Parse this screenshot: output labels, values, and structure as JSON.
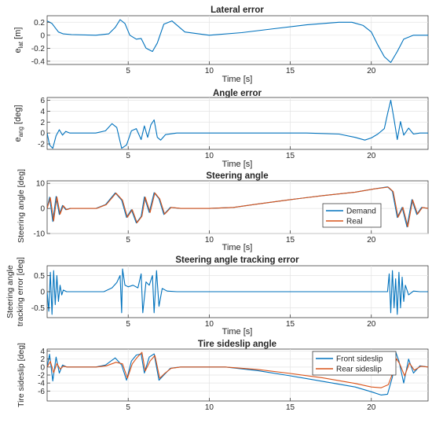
{
  "chart_data": [
    {
      "type": "line",
      "title": "Lateral error",
      "ylabel_main": "e",
      "ylabel_sub": "lat",
      "ylabel_unit": " [m]",
      "xlabel": "Time [s]",
      "xlim": [
        0,
        23.5
      ],
      "ylim": [
        -0.45,
        0.3
      ],
      "xticks": [
        5,
        10,
        15,
        20
      ],
      "yticks": [
        -0.4,
        -0.2,
        0,
        0.2
      ],
      "ytick_labels": [
        "-0.4",
        "-0.2",
        "0",
        "0.2"
      ],
      "grid": true,
      "series": [
        {
          "color": "#0072bd",
          "x": [
            0,
            0.3,
            0.7,
            1.0,
            1.5,
            3.0,
            3.8,
            4.2,
            4.5,
            4.8,
            5.1,
            5.5,
            5.8,
            6.1,
            6.5,
            6.8,
            7.2,
            7.7,
            8.5,
            10,
            12,
            14,
            16,
            18,
            18.8,
            19.5,
            20,
            20.4,
            20.8,
            21.2,
            21.6,
            22,
            22.6,
            23.5
          ],
          "values": [
            0.22,
            0.18,
            0.05,
            0.02,
            0.01,
            0,
            0.02,
            0.12,
            0.24,
            0.18,
            0.0,
            -0.06,
            -0.05,
            -0.2,
            -0.25,
            -0.12,
            0.17,
            0.22,
            0.05,
            0,
            0.04,
            0.1,
            0.16,
            0.2,
            0.2,
            0.15,
            0.05,
            -0.15,
            -0.33,
            -0.42,
            -0.25,
            -0.06,
            0,
            0
          ]
        }
      ]
    },
    {
      "type": "line",
      "title": "Angle error",
      "ylabel_main": "e",
      "ylabel_sub": "ang",
      "ylabel_unit": " [deg]",
      "xlabel": "Time [s]",
      "xlim": [
        0,
        23.5
      ],
      "ylim": [
        -3,
        6.5
      ],
      "xticks": [
        5,
        10,
        15,
        20
      ],
      "yticks": [
        -2,
        0,
        2,
        4,
        6
      ],
      "ytick_labels": [
        "-2",
        "0",
        "2",
        "4",
        "6"
      ],
      "grid": true,
      "series": [
        {
          "color": "#0072bd",
          "x": [
            0,
            0.15,
            0.35,
            0.55,
            0.75,
            0.95,
            1.15,
            1.4,
            1.8,
            3.0,
            3.6,
            4.0,
            4.3,
            4.6,
            4.9,
            5.2,
            5.5,
            5.8,
            6.0,
            6.2,
            6.4,
            6.6,
            6.8,
            7.0,
            7.3,
            8,
            10,
            12,
            14,
            16,
            18,
            19,
            19.6,
            20,
            20.4,
            20.8,
            21.0,
            21.2,
            21.4,
            21.6,
            21.8,
            22.0,
            22.3,
            22.6,
            23.0,
            23.5
          ],
          "values": [
            0,
            -2.2,
            -2.8,
            -0.5,
            0.6,
            -0.4,
            0.3,
            0,
            0,
            0,
            0.4,
            1.7,
            1.0,
            -2.8,
            -2.2,
            0.4,
            0.8,
            -1.2,
            1.3,
            -0.8,
            1.5,
            2.4,
            -0.8,
            -1.3,
            -0.3,
            0,
            0,
            0,
            0,
            0,
            -0.2,
            -0.8,
            -1.3,
            -0.9,
            -0.2,
            0.8,
            3.5,
            6.0,
            2.5,
            -1.2,
            2.1,
            -0.4,
            0.9,
            -0.2,
            0,
            0
          ]
        }
      ]
    },
    {
      "type": "line",
      "title": "Steering angle",
      "ylabel": "Steering angle [deg]",
      "xlabel": "Time [s]",
      "xlim": [
        0,
        23.5
      ],
      "ylim": [
        -10,
        11
      ],
      "xticks": [
        5,
        10,
        15,
        20
      ],
      "yticks": [
        -10,
        0,
        10
      ],
      "ytick_labels": [
        "-10",
        "0",
        "10"
      ],
      "grid": true,
      "legend": "lower-right",
      "series": [
        {
          "name": "Demand",
          "color": "#0072bd",
          "x": [
            0,
            0.15,
            0.35,
            0.55,
            0.75,
            0.95,
            1.15,
            1.4,
            1.8,
            3.0,
            3.6,
            4.2,
            4.6,
            4.9,
            5.2,
            5.5,
            5.8,
            6.0,
            6.3,
            6.6,
            6.9,
            7.2,
            7.6,
            8.2,
            10,
            11.5,
            13,
            15,
            17,
            19,
            20.2,
            21.0,
            21.3,
            21.6,
            21.9,
            22.2,
            22.5,
            22.8,
            23.1,
            23.5
          ],
          "values": [
            0,
            4.5,
            -5.2,
            4.8,
            -2.4,
            1.2,
            -0.5,
            0,
            0,
            0,
            1.5,
            6.2,
            3.3,
            -3.6,
            -0.5,
            -5.8,
            -3.2,
            4.6,
            -1.6,
            6.3,
            3.9,
            -2.4,
            0.4,
            0,
            0,
            0.4,
            1.8,
            3.5,
            5.1,
            6.5,
            7.8,
            8.6,
            6.8,
            -3.6,
            0.4,
            -7.4,
            3.5,
            -2.4,
            0.4,
            0
          ]
        },
        {
          "name": "Real",
          "color": "#d95319",
          "x": [
            0,
            0.2,
            0.4,
            0.6,
            0.8,
            1.0,
            1.2,
            1.45,
            1.85,
            3.05,
            3.65,
            4.25,
            4.65,
            4.95,
            5.25,
            5.55,
            5.85,
            6.05,
            6.35,
            6.65,
            6.95,
            7.25,
            7.65,
            8.25,
            10,
            11.5,
            13,
            15,
            17,
            19,
            20.2,
            21.05,
            21.35,
            21.65,
            21.95,
            22.25,
            22.55,
            22.85,
            23.15,
            23.5
          ],
          "values": [
            0,
            4.3,
            -5.0,
            4.6,
            -2.3,
            1.1,
            -0.5,
            0,
            0,
            0,
            1.5,
            6.1,
            3.3,
            -3.5,
            -0.5,
            -5.7,
            -3.1,
            4.5,
            -1.6,
            6.2,
            3.8,
            -2.3,
            0.4,
            0,
            0,
            0.4,
            1.8,
            3.5,
            5.1,
            6.5,
            7.8,
            8.5,
            6.7,
            -3.5,
            0.4,
            -7.3,
            3.4,
            -2.3,
            0.4,
            0
          ]
        }
      ]
    },
    {
      "type": "line",
      "title": "Steering angle tracking error",
      "ylabel": "Steering angle tracking error [deg]",
      "ylabel_line1": "Steering angle",
      "ylabel_line2": "tracking error [deg]",
      "xlabel": "Time [s]",
      "xlim": [
        0,
        23.5
      ],
      "ylim": [
        -0.8,
        0.8
      ],
      "xticks": [
        5,
        10,
        15,
        20
      ],
      "yticks": [
        -0.5,
        0,
        0.5
      ],
      "ytick_labels": [
        "-0.5",
        "0",
        "0.5"
      ],
      "grid": true,
      "series": [
        {
          "color": "#0072bd",
          "x": [
            0,
            0.1,
            0.2,
            0.3,
            0.4,
            0.5,
            0.6,
            0.7,
            0.8,
            0.9,
            1.0,
            1.2,
            1.5,
            3.5,
            4.0,
            4.3,
            4.5,
            4.6,
            4.65,
            4.8,
            5.0,
            5.3,
            5.6,
            5.8,
            5.9,
            6.1,
            6.3,
            6.5,
            6.6,
            6.75,
            6.9,
            7.1,
            7.4,
            8.0,
            21.0,
            21.1,
            21.2,
            21.3,
            21.4,
            21.5,
            21.6,
            21.7,
            21.8,
            21.9,
            22.0,
            22.1,
            22.3,
            22.6,
            23.0,
            23.5
          ],
          "values": [
            0,
            -0.6,
            0.6,
            -0.7,
            0.65,
            -0.4,
            0.5,
            -0.3,
            0.2,
            -0.1,
            0.05,
            0,
            0,
            0,
            0.12,
            0.28,
            0.5,
            -0.65,
            0.7,
            0.2,
            0.15,
            0.2,
            0.12,
            0.55,
            -0.65,
            0.3,
            0.2,
            0.5,
            -0.65,
            0.65,
            -0.45,
            0.1,
            0.02,
            0,
            0,
            0.55,
            -0.65,
            0.65,
            -0.5,
            0.4,
            -0.7,
            0.6,
            -0.5,
            0.45,
            -0.3,
            0.2,
            -0.1,
            0.02,
            0,
            0
          ]
        }
      ]
    },
    {
      "type": "line",
      "title": "Tire sideslip angle",
      "ylabel": "Tire sideslip [deg]",
      "xlabel": "",
      "xlim": [
        0,
        23.5
      ],
      "ylim": [
        -8.5,
        4.5
      ],
      "xticks": [
        5,
        10,
        15,
        20
      ],
      "yticks": [
        -6,
        -4,
        -2,
        0,
        2,
        4
      ],
      "ytick_labels": [
        "-6",
        "-4",
        "-2",
        "0",
        "2",
        "4"
      ],
      "grid": true,
      "legend": "top-right",
      "series": [
        {
          "name": "Front sideslip",
          "color": "#0072bd",
          "x": [
            0,
            0.15,
            0.35,
            0.55,
            0.75,
            0.95,
            1.2,
            1.5,
            3.0,
            3.6,
            4.2,
            4.6,
            4.9,
            5.2,
            5.5,
            5.8,
            6.0,
            6.3,
            6.6,
            6.9,
            7.2,
            7.6,
            8.2,
            11,
            13,
            15,
            17,
            19,
            20,
            20.6,
            21.0,
            21.3,
            21.5,
            21.7,
            22.0,
            22.3,
            22.6,
            23.0,
            23.5
          ],
          "values": [
            0,
            3.2,
            -3.5,
            2.5,
            -1.5,
            0.5,
            0,
            0,
            0,
            0.5,
            2.3,
            0.5,
            -3.3,
            1.5,
            3.0,
            3.3,
            -1.5,
            2.5,
            3.3,
            -3.3,
            -2.0,
            -0.3,
            0,
            0,
            -0.9,
            -2.2,
            -3.6,
            -5.0,
            -6.2,
            -7.0,
            -6.8,
            -2.5,
            3.8,
            1.5,
            -4.0,
            2.0,
            -1.5,
            0.3,
            0
          ]
        },
        {
          "name": "Rear sideslip",
          "color": "#d95319",
          "x": [
            0,
            0.2,
            0.4,
            0.6,
            0.8,
            1.0,
            1.25,
            1.55,
            3.05,
            3.65,
            4.25,
            4.65,
            4.95,
            5.25,
            5.55,
            5.85,
            6.05,
            6.35,
            6.65,
            6.95,
            7.25,
            7.65,
            8.25,
            11,
            13,
            15,
            17,
            19,
            20,
            20.6,
            21.05,
            21.35,
            21.55,
            21.75,
            22.05,
            22.35,
            22.65,
            23.05,
            23.5
          ],
          "values": [
            0,
            1.4,
            -1.4,
            0.9,
            -0.5,
            0.2,
            0,
            0,
            0,
            0.3,
            1.2,
            0.8,
            -2.8,
            0.8,
            2.4,
            3.7,
            -1.0,
            1.5,
            2.9,
            -2.8,
            -1.6,
            -0.3,
            0,
            0,
            -0.6,
            -1.6,
            -2.7,
            -4.1,
            -5.0,
            -5.2,
            -4.4,
            -1.2,
            2.1,
            0.8,
            -2.2,
            1.0,
            -0.8,
            0.2,
            0
          ]
        }
      ]
    }
  ]
}
